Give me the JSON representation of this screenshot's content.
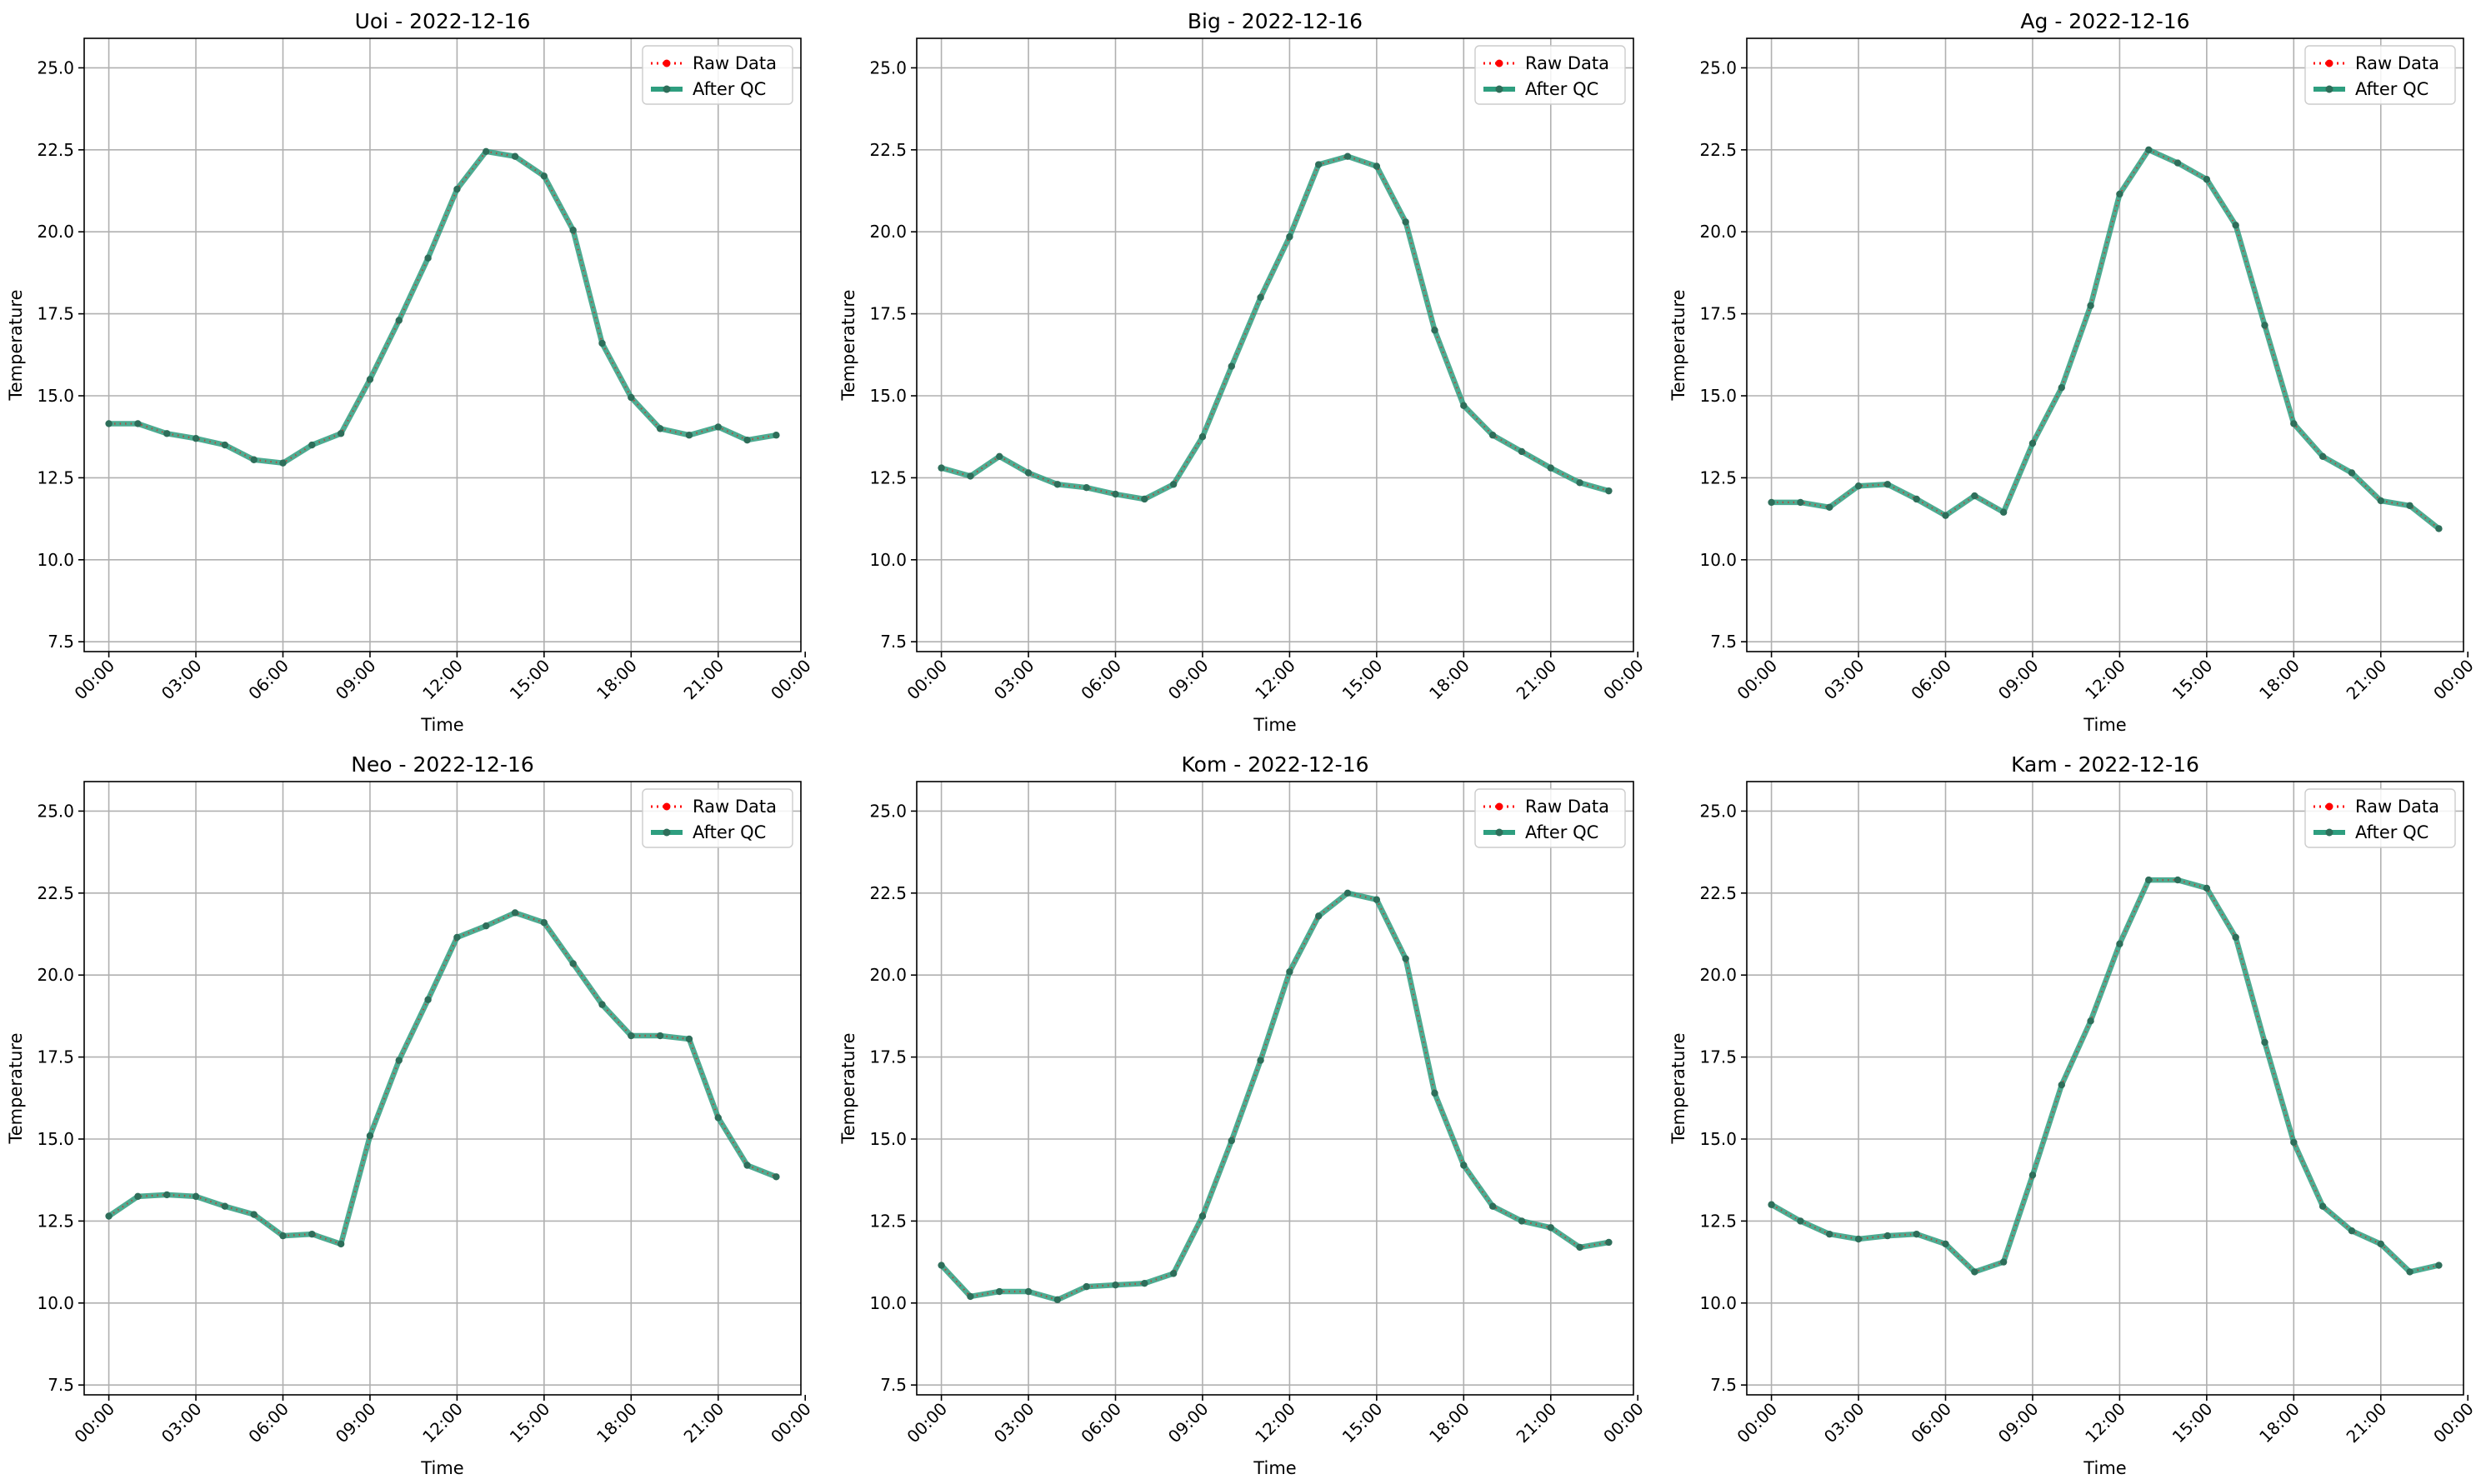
{
  "figure": {
    "legend_labels": {
      "raw": "Raw Data",
      "qc": "After QC"
    },
    "colors": {
      "raw": "#ff0000",
      "qc": "#2e9e7f",
      "marker": "#2e6e5a",
      "grid": "#b0b0b0"
    }
  },
  "chart_data": [
    {
      "type": "line",
      "title": "Uoi - 2022-12-16",
      "xlabel": "Time",
      "ylabel": "Temperature",
      "ylim": [
        7.2,
        25.9
      ],
      "xlim": [
        -0.85,
        23.85
      ],
      "xticks": [
        0,
        3,
        6,
        9,
        12,
        15,
        18,
        21,
        24
      ],
      "xtick_labels": [
        "00:00",
        "03:00",
        "06:00",
        "09:00",
        "12:00",
        "15:00",
        "18:00",
        "21:00",
        "00:00"
      ],
      "yticks": [
        7.5,
        10.0,
        12.5,
        15.0,
        17.5,
        20.0,
        22.5,
        25.0
      ],
      "ytick_labels": [
        "7.5",
        "10.0",
        "12.5",
        "15.0",
        "17.5",
        "20.0",
        "22.5",
        "25.0"
      ],
      "grid": true,
      "legend_position": "top-right",
      "x": [
        0,
        1,
        2,
        3,
        4,
        5,
        6,
        7,
        8,
        9,
        10,
        11,
        12,
        13,
        14,
        15,
        16,
        17,
        18,
        19,
        20,
        21,
        22,
        23
      ],
      "series": [
        {
          "name": "Raw Data",
          "values": [
            14.15,
            14.15,
            13.85,
            13.7,
            13.5,
            13.05,
            12.95,
            13.5,
            13.85,
            15.5,
            17.3,
            19.2,
            21.3,
            22.45,
            22.3,
            21.7,
            20.05,
            16.6,
            14.95,
            14.0,
            13.8,
            14.05,
            13.65,
            13.8
          ]
        },
        {
          "name": "After QC",
          "values": [
            14.15,
            14.15,
            13.85,
            13.7,
            13.5,
            13.05,
            12.95,
            13.5,
            13.85,
            15.5,
            17.3,
            19.2,
            21.3,
            22.45,
            22.3,
            21.7,
            20.05,
            16.6,
            14.95,
            14.0,
            13.8,
            14.05,
            13.65,
            13.8
          ]
        }
      ]
    },
    {
      "type": "line",
      "title": "Big - 2022-12-16",
      "xlabel": "Time",
      "ylabel": "Temperature",
      "ylim": [
        7.2,
        25.9
      ],
      "xlim": [
        -0.85,
        23.85
      ],
      "xticks": [
        0,
        3,
        6,
        9,
        12,
        15,
        18,
        21,
        24
      ],
      "xtick_labels": [
        "00:00",
        "03:00",
        "06:00",
        "09:00",
        "12:00",
        "15:00",
        "18:00",
        "21:00",
        "00:00"
      ],
      "yticks": [
        7.5,
        10.0,
        12.5,
        15.0,
        17.5,
        20.0,
        22.5,
        25.0
      ],
      "ytick_labels": [
        "7.5",
        "10.0",
        "12.5",
        "15.0",
        "17.5",
        "20.0",
        "22.5",
        "25.0"
      ],
      "grid": true,
      "legend_position": "top-right",
      "x": [
        0,
        1,
        2,
        3,
        4,
        5,
        6,
        7,
        8,
        9,
        10,
        11,
        12,
        13,
        14,
        15,
        16,
        17,
        18,
        19,
        20,
        21,
        22,
        23
      ],
      "series": [
        {
          "name": "Raw Data",
          "values": [
            12.8,
            12.55,
            13.15,
            12.65,
            12.3,
            12.2,
            12.0,
            11.85,
            12.3,
            13.75,
            15.9,
            18.0,
            19.85,
            22.05,
            22.3,
            22.0,
            20.3,
            17.0,
            14.7,
            13.8,
            13.3,
            12.8,
            12.35,
            12.1
          ]
        },
        {
          "name": "After QC",
          "values": [
            12.8,
            12.55,
            13.15,
            12.65,
            12.3,
            12.2,
            12.0,
            11.85,
            12.3,
            13.75,
            15.9,
            18.0,
            19.85,
            22.05,
            22.3,
            22.0,
            20.3,
            17.0,
            14.7,
            13.8,
            13.3,
            12.8,
            12.35,
            12.1
          ]
        }
      ]
    },
    {
      "type": "line",
      "title": "Ag - 2022-12-16",
      "xlabel": "Time",
      "ylabel": "Temperature",
      "ylim": [
        7.2,
        25.9
      ],
      "xlim": [
        -0.85,
        23.85
      ],
      "xticks": [
        0,
        3,
        6,
        9,
        12,
        15,
        18,
        21,
        24
      ],
      "xtick_labels": [
        "00:00",
        "03:00",
        "06:00",
        "09:00",
        "12:00",
        "15:00",
        "18:00",
        "21:00",
        "00:00"
      ],
      "yticks": [
        7.5,
        10.0,
        12.5,
        15.0,
        17.5,
        20.0,
        22.5,
        25.0
      ],
      "ytick_labels": [
        "7.5",
        "10.0",
        "12.5",
        "15.0",
        "17.5",
        "20.0",
        "22.5",
        "25.0"
      ],
      "grid": true,
      "legend_position": "top-right",
      "x": [
        0,
        1,
        2,
        3,
        4,
        5,
        6,
        7,
        8,
        9,
        10,
        11,
        12,
        13,
        14,
        15,
        16,
        17,
        18,
        19,
        20,
        21,
        22,
        23
      ],
      "series": [
        {
          "name": "Raw Data",
          "values": [
            11.75,
            11.75,
            11.6,
            12.25,
            12.3,
            11.85,
            11.35,
            11.95,
            11.45,
            13.55,
            15.25,
            17.75,
            21.15,
            22.5,
            22.1,
            21.6,
            20.2,
            17.15,
            14.15,
            13.15,
            12.65,
            11.8,
            11.65,
            10.95
          ]
        },
        {
          "name": "After QC",
          "values": [
            11.75,
            11.75,
            11.6,
            12.25,
            12.3,
            11.85,
            11.35,
            11.95,
            11.45,
            13.55,
            15.25,
            17.75,
            21.15,
            22.5,
            22.1,
            21.6,
            20.2,
            17.15,
            14.15,
            13.15,
            12.65,
            11.8,
            11.65,
            10.95
          ]
        }
      ]
    },
    {
      "type": "line",
      "title": "Neo - 2022-12-16",
      "xlabel": "Time",
      "ylabel": "Temperature",
      "ylim": [
        7.2,
        25.9
      ],
      "xlim": [
        -0.85,
        23.85
      ],
      "xticks": [
        0,
        3,
        6,
        9,
        12,
        15,
        18,
        21,
        24
      ],
      "xtick_labels": [
        "00:00",
        "03:00",
        "06:00",
        "09:00",
        "12:00",
        "15:00",
        "18:00",
        "21:00",
        "00:00"
      ],
      "yticks": [
        7.5,
        10.0,
        12.5,
        15.0,
        17.5,
        20.0,
        22.5,
        25.0
      ],
      "ytick_labels": [
        "7.5",
        "10.0",
        "12.5",
        "15.0",
        "17.5",
        "20.0",
        "22.5",
        "25.0"
      ],
      "grid": true,
      "legend_position": "top-right",
      "x": [
        0,
        1,
        2,
        3,
        4,
        5,
        6,
        7,
        8,
        9,
        10,
        11,
        12,
        13,
        14,
        15,
        16,
        17,
        18,
        19,
        20,
        21,
        22,
        23
      ],
      "series": [
        {
          "name": "Raw Data",
          "values": [
            12.65,
            13.25,
            13.3,
            13.25,
            12.95,
            12.7,
            12.05,
            12.1,
            11.8,
            15.1,
            17.4,
            19.25,
            21.15,
            21.5,
            21.9,
            21.6,
            20.35,
            19.1,
            18.15,
            18.15,
            18.05,
            15.65,
            14.2,
            13.85
          ]
        },
        {
          "name": "After QC",
          "values": [
            12.65,
            13.25,
            13.3,
            13.25,
            12.95,
            12.7,
            12.05,
            12.1,
            11.8,
            15.1,
            17.4,
            19.25,
            21.15,
            21.5,
            21.9,
            21.6,
            20.35,
            19.1,
            18.15,
            18.15,
            18.05,
            15.65,
            14.2,
            13.85
          ]
        }
      ]
    },
    {
      "type": "line",
      "title": "Kom - 2022-12-16",
      "xlabel": "Time",
      "ylabel": "Temperature",
      "ylim": [
        7.2,
        25.9
      ],
      "xlim": [
        -0.85,
        23.85
      ],
      "xticks": [
        0,
        3,
        6,
        9,
        12,
        15,
        18,
        21,
        24
      ],
      "xtick_labels": [
        "00:00",
        "03:00",
        "06:00",
        "09:00",
        "12:00",
        "15:00",
        "18:00",
        "21:00",
        "00:00"
      ],
      "yticks": [
        7.5,
        10.0,
        12.5,
        15.0,
        17.5,
        20.0,
        22.5,
        25.0
      ],
      "ytick_labels": [
        "7.5",
        "10.0",
        "12.5",
        "15.0",
        "17.5",
        "20.0",
        "22.5",
        "25.0"
      ],
      "grid": true,
      "legend_position": "top-right",
      "x": [
        0,
        1,
        2,
        3,
        4,
        5,
        6,
        7,
        8,
        9,
        10,
        11,
        12,
        13,
        14,
        15,
        16,
        17,
        18,
        19,
        20,
        21,
        22,
        23
      ],
      "series": [
        {
          "name": "Raw Data",
          "values": [
            11.15,
            10.2,
            10.35,
            10.35,
            10.1,
            10.5,
            10.55,
            10.6,
            10.9,
            12.65,
            14.95,
            17.4,
            20.1,
            21.8,
            22.5,
            22.3,
            20.5,
            16.4,
            14.2,
            12.95,
            12.5,
            12.3,
            11.7,
            11.85
          ]
        },
        {
          "name": "After QC",
          "values": [
            11.15,
            10.2,
            10.35,
            10.35,
            10.1,
            10.5,
            10.55,
            10.6,
            10.9,
            12.65,
            14.95,
            17.4,
            20.1,
            21.8,
            22.5,
            22.3,
            20.5,
            16.4,
            14.2,
            12.95,
            12.5,
            12.3,
            11.7,
            11.85
          ]
        }
      ]
    },
    {
      "type": "line",
      "title": "Kam - 2022-12-16",
      "xlabel": "Time",
      "ylabel": "Temperature",
      "ylim": [
        7.2,
        25.9
      ],
      "xlim": [
        -0.85,
        23.85
      ],
      "xticks": [
        0,
        3,
        6,
        9,
        12,
        15,
        18,
        21,
        24
      ],
      "xtick_labels": [
        "00:00",
        "03:00",
        "06:00",
        "09:00",
        "12:00",
        "15:00",
        "18:00",
        "21:00",
        "00:00"
      ],
      "yticks": [
        7.5,
        10.0,
        12.5,
        15.0,
        17.5,
        20.0,
        22.5,
        25.0
      ],
      "ytick_labels": [
        "7.5",
        "10.0",
        "12.5",
        "15.0",
        "17.5",
        "20.0",
        "22.5",
        "25.0"
      ],
      "grid": true,
      "legend_position": "top-right",
      "x": [
        0,
        1,
        2,
        3,
        4,
        5,
        6,
        7,
        8,
        9,
        10,
        11,
        12,
        13,
        14,
        15,
        16,
        17,
        18,
        19,
        20,
        21,
        22,
        23
      ],
      "series": [
        {
          "name": "Raw Data",
          "values": [
            13.0,
            12.5,
            12.1,
            11.95,
            12.05,
            12.1,
            11.8,
            10.95,
            11.25,
            13.9,
            16.65,
            18.6,
            20.95,
            22.9,
            22.9,
            22.65,
            21.15,
            17.95,
            14.9,
            12.95,
            12.2,
            11.8,
            10.95,
            11.15
          ]
        },
        {
          "name": "After QC",
          "values": [
            13.0,
            12.5,
            12.1,
            11.95,
            12.05,
            12.1,
            11.8,
            10.95,
            11.25,
            13.9,
            16.65,
            18.6,
            20.95,
            22.9,
            22.9,
            22.65,
            21.15,
            17.95,
            14.9,
            12.95,
            12.2,
            11.8,
            10.95,
            11.15
          ]
        }
      ]
    }
  ]
}
